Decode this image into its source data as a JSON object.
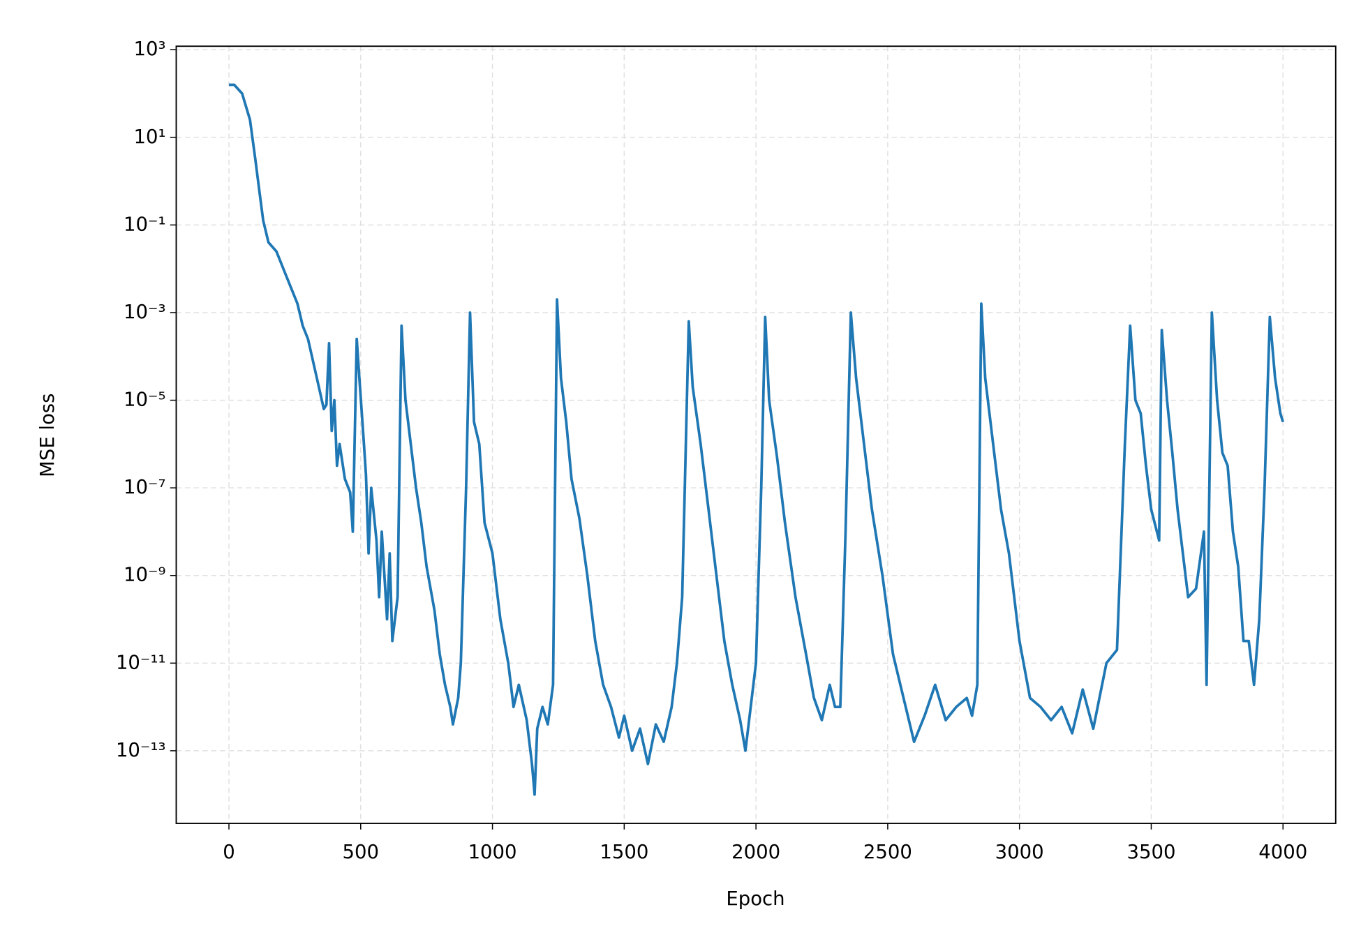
{
  "chart_data": {
    "type": "line",
    "xlabel": "Epoch",
    "ylabel": "MSE loss",
    "yscale": "log",
    "grid": true,
    "xlim": [
      -200,
      4200
    ],
    "ylim": [
      2.2e-15,
      1200
    ],
    "xticks": [
      0,
      500,
      1000,
      1500,
      2000,
      2500,
      3000,
      3500,
      4000
    ],
    "yticks": [
      {
        "value": 1000,
        "label": "10³"
      },
      {
        "value": 10,
        "label": "10¹"
      },
      {
        "value": 0.1,
        "label": "10⁻¹"
      },
      {
        "value": 0.001,
        "label": "10⁻³"
      },
      {
        "value": 1e-05,
        "label": "10⁻⁵"
      },
      {
        "value": 1e-07,
        "label": "10⁻⁷"
      },
      {
        "value": 1e-09,
        "label": "10⁻⁹"
      },
      {
        "value": 1e-11,
        "label": "10⁻¹¹"
      },
      {
        "value": 1e-13,
        "label": "10⁻¹³"
      }
    ],
    "x": [
      0,
      20,
      50,
      80,
      100,
      115,
      130,
      150,
      180,
      220,
      260,
      280,
      300,
      330,
      360,
      370,
      380,
      390,
      400,
      410,
      420,
      440,
      460,
      470,
      485,
      495,
      510,
      520,
      530,
      540,
      560,
      570,
      580,
      600,
      610,
      620,
      640,
      655,
      670,
      690,
      710,
      730,
      750,
      780,
      800,
      820,
      840,
      850,
      870,
      880,
      900,
      915,
      930,
      950,
      970,
      1000,
      1030,
      1060,
      1080,
      1100,
      1130,
      1150,
      1160,
      1170,
      1190,
      1210,
      1230,
      1245,
      1260,
      1280,
      1300,
      1330,
      1360,
      1390,
      1420,
      1450,
      1480,
      1500,
      1530,
      1560,
      1590,
      1620,
      1650,
      1680,
      1700,
      1720,
      1745,
      1760,
      1790,
      1820,
      1850,
      1880,
      1910,
      1940,
      1960,
      1980,
      2000,
      2020,
      2035,
      2050,
      2080,
      2110,
      2150,
      2190,
      2220,
      2250,
      2280,
      2300,
      2320,
      2340,
      2360,
      2380,
      2410,
      2440,
      2480,
      2520,
      2560,
      2600,
      2640,
      2680,
      2720,
      2760,
      2800,
      2820,
      2840,
      2855,
      2870,
      2900,
      2930,
      2960,
      3000,
      3040,
      3080,
      3120,
      3160,
      3200,
      3240,
      3280,
      3330,
      3370,
      3400,
      3420,
      3440,
      3460,
      3480,
      3500,
      3530,
      3540,
      3560,
      3580,
      3600,
      3620,
      3640,
      3670,
      3700,
      3710,
      3730,
      3750,
      3770,
      3790,
      3810,
      3830,
      3850,
      3870,
      3890,
      3910,
      3930,
      3950,
      3970,
      3990,
      4000
    ],
    "series": [
      {
        "color": "#1f77b4",
        "values": [
          158,
          158,
          100,
          25,
          3.2,
          0.63,
          0.126,
          0.04,
          0.025,
          0.0063,
          0.0016,
          0.0005,
          0.00025,
          4e-05,
          6.3e-06,
          7.9e-06,
          0.0002,
          2e-06,
          1e-05,
          3.2e-07,
          1e-06,
          1.6e-07,
          7.9e-08,
          1e-08,
          0.00025,
          3.2e-05,
          1.6e-06,
          2e-07,
          3.2e-09,
          1e-07,
          6.3e-09,
          3.2e-10,
          1e-08,
          1e-10,
          3.2e-09,
          3.2e-11,
          3.2e-10,
          0.0005,
          1e-05,
          1e-06,
          1e-07,
          1.6e-08,
          1.6e-09,
          1.6e-10,
          1.6e-11,
          3.2e-12,
          1e-12,
          4e-13,
          1.6e-12,
          1e-11,
          1e-07,
          0.001,
          3.2e-06,
          1e-06,
          1.6e-08,
          3.2e-09,
          1e-10,
          1e-11,
          1e-12,
          3.2e-12,
          5e-13,
          5e-14,
          1e-14,
          3.2e-13,
          1e-12,
          4e-13,
          3.2e-12,
          0.002,
          3.2e-05,
          3.2e-06,
          1.6e-07,
          2e-08,
          1e-09,
          3.2e-11,
          3.2e-12,
          1e-12,
          2e-13,
          6.3e-13,
          1e-13,
          3.2e-13,
          5e-14,
          4e-13,
          1.6e-13,
          1e-12,
          1e-11,
          3.2e-10,
          0.00063,
          2e-05,
          1e-06,
          3.2e-08,
          1e-09,
          3.2e-11,
          3.2e-12,
          5e-13,
          1e-13,
          1e-12,
          1e-11,
          1e-07,
          0.00079,
          1e-05,
          5e-07,
          1.6e-08,
          3.2e-10,
          1.6e-11,
          1.6e-12,
          5e-13,
          3.2e-12,
          1e-12,
          1e-12,
          1e-08,
          0.001,
          3.2e-05,
          1e-06,
          3.2e-08,
          1e-09,
          1.6e-11,
          1.6e-12,
          1.6e-13,
          6.3e-13,
          3.2e-12,
          5e-13,
          1e-12,
          1.6e-12,
          6.3e-13,
          3.2e-12,
          0.0016,
          3.2e-05,
          1e-06,
          3.2e-08,
          3.2e-09,
          3.2e-11,
          1.6e-12,
          1e-12,
          5e-13,
          1e-12,
          2.5e-13,
          2.5e-12,
          3.2e-13,
          1e-11,
          2e-11,
          1e-06,
          0.0005,
          1e-05,
          5e-06,
          3.2e-07,
          3.2e-08,
          6.3e-09,
          0.0004,
          1e-05,
          6.3e-07,
          3.2e-08,
          3.2e-09,
          3.2e-10,
          5e-10,
          1e-08,
          3.2e-12,
          0.001,
          1e-05,
          6.3e-07,
          3.2e-07,
          1e-08,
          1.6e-09,
          3.2e-11,
          3.2e-11,
          3.2e-12,
          1e-10,
          1e-07,
          0.00079,
          3.2e-05,
          5e-06,
          3.2e-06
        ]
      }
    ]
  }
}
